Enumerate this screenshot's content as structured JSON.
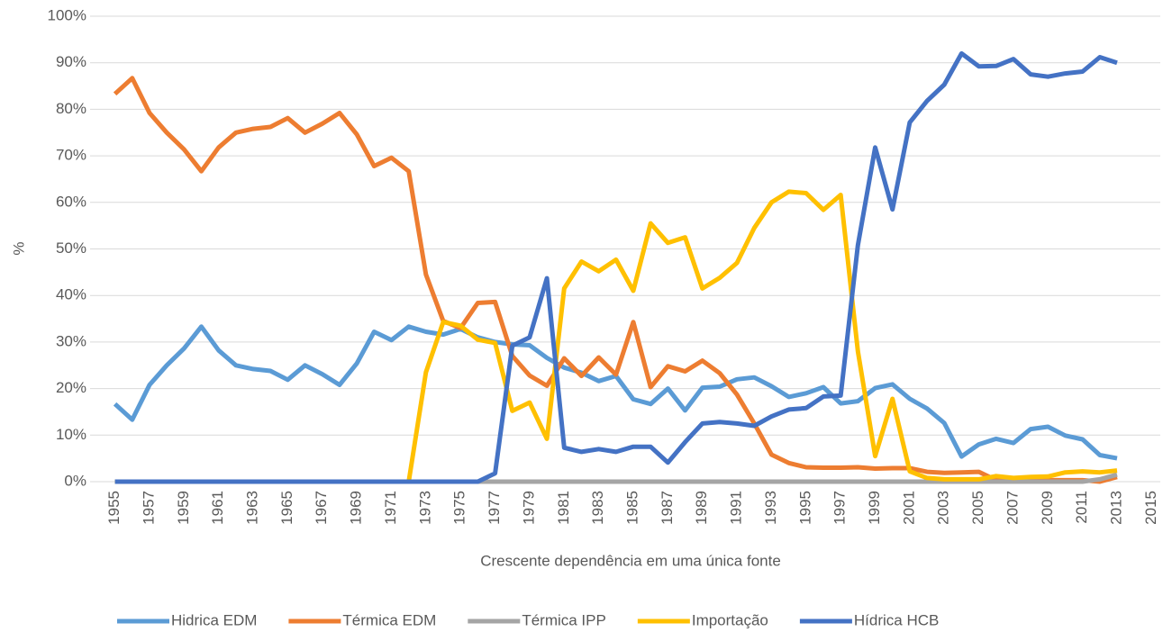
{
  "chart_data": {
    "type": "line",
    "y_label": "%",
    "x_label": "Crescente dependência em uma única fonte",
    "x": [
      1955,
      1956,
      1957,
      1958,
      1959,
      1960,
      1961,
      1962,
      1963,
      1964,
      1965,
      1966,
      1967,
      1968,
      1969,
      1970,
      1971,
      1972,
      1973,
      1974,
      1975,
      1976,
      1977,
      1978,
      1979,
      1980,
      1981,
      1982,
      1983,
      1984,
      1985,
      1986,
      1987,
      1988,
      1989,
      1990,
      1991,
      1992,
      1993,
      1994,
      1995,
      1996,
      1997,
      1998,
      1999,
      2000,
      2001,
      2002,
      2003,
      2004,
      2005,
      2006,
      2007,
      2008,
      2009,
      2010,
      2011,
      2012,
      2013
    ],
    "series": [
      {
        "name": "Hidrica EDM",
        "color": "#5b9bd5",
        "values": [
          16.7,
          13.3,
          20.8,
          25,
          28.6,
          33.3,
          28.2,
          25,
          24.2,
          23.8,
          21.9,
          25,
          23.1,
          20.8,
          25.4,
          32.2,
          30.4,
          33.3,
          32.2,
          31.6,
          32.8,
          31,
          30,
          29.5,
          29.3,
          26.6,
          24.5,
          23.4,
          21.6,
          22.7,
          17.7,
          16.7,
          20,
          15.3,
          20.2,
          20.4,
          22,
          22.4,
          20.5,
          18.2,
          19,
          20.3,
          16.8,
          17.3,
          20.1,
          20.9,
          17.8,
          15.7,
          12.6,
          5.4,
          8,
          9.2,
          8.3,
          11.3,
          11.8,
          9.9,
          9.1,
          5.7,
          5
        ]
      },
      {
        "name": "Térmica EDM",
        "color": "#ed7d31",
        "values": [
          83.3,
          86.7,
          79.2,
          75,
          71.4,
          66.7,
          71.8,
          75,
          75.8,
          76.2,
          78.1,
          75,
          76.9,
          79.2,
          74.6,
          67.8,
          69.6,
          66.7,
          44.5,
          34.5,
          33,
          38.4,
          38.6,
          27,
          22.8,
          20.6,
          26.5,
          22.7,
          26.7,
          23,
          34.3,
          20.3,
          24.8,
          23.7,
          26,
          23.3,
          18.7,
          12.5,
          5.8,
          4,
          3.1,
          3,
          3,
          3.1,
          2.8,
          2.9,
          2.9,
          2.1,
          1.9,
          2,
          2.1,
          0.3,
          0.3,
          0.3,
          0.3,
          0.3,
          0.3,
          0,
          1
        ]
      },
      {
        "name": "Térmica IPP",
        "color": "#a5a5a5",
        "values": [
          0,
          0,
          0,
          0,
          0,
          0,
          0,
          0,
          0,
          0,
          0,
          0,
          0,
          0,
          0,
          0,
          0,
          0,
          0,
          0,
          0,
          0,
          0,
          0,
          0,
          0,
          0,
          0,
          0,
          0,
          0,
          0,
          0,
          0,
          0,
          0,
          0,
          0,
          0,
          0,
          0,
          0,
          0,
          0,
          0,
          0,
          0,
          0,
          0,
          0,
          0,
          0,
          0,
          0,
          0,
          0,
          0,
          0.5,
          1.5
        ]
      },
      {
        "name": "Importação",
        "color": "#ffc000",
        "values": [
          0,
          0,
          0,
          0,
          0,
          0,
          0,
          0,
          0,
          0,
          0,
          0,
          0,
          0,
          0,
          0,
          0,
          0,
          23.5,
          34.3,
          33.5,
          30.5,
          29.8,
          15.2,
          17,
          9.2,
          41.5,
          47.3,
          45.2,
          47.7,
          41,
          55.5,
          51.3,
          52.5,
          41.5,
          43.8,
          47,
          54.5,
          60,
          62.3,
          62,
          58.4,
          61.6,
          28,
          5.5,
          17.8,
          2.2,
          0.8,
          0.5,
          0.5,
          0.5,
          1.2,
          0.8,
          1,
          1.1,
          2,
          2.2,
          2,
          2.4
        ]
      },
      {
        "name": "Hídrica HCB",
        "color": "#4472c4",
        "values": [
          0,
          0,
          0,
          0,
          0,
          0,
          0,
          0,
          0,
          0,
          0,
          0,
          0,
          0,
          0,
          0,
          0,
          0,
          0,
          0,
          0,
          0,
          1.8,
          29.2,
          31,
          43.7,
          7.3,
          6.4,
          7,
          6.4,
          7.5,
          7.5,
          4.1,
          8.5,
          12.5,
          12.8,
          12.5,
          12,
          14,
          15.5,
          15.8,
          18.3,
          18.5,
          50.8,
          71.8,
          58.5,
          77.2,
          81.8,
          85.3,
          92,
          89.2,
          89.3,
          90.8,
          87.5,
          87,
          87.7,
          88.1,
          91.2,
          90
        ]
      }
    ],
    "xlim": [
      1954.5,
      2015.5
    ],
    "xticks": [
      1955,
      1957,
      1959,
      1961,
      1963,
      1965,
      1967,
      1969,
      1971,
      1973,
      1975,
      1977,
      1979,
      1981,
      1983,
      1985,
      1987,
      1989,
      1991,
      1993,
      1995,
      1997,
      1999,
      2001,
      2003,
      2005,
      2007,
      2009,
      2011,
      2013,
      2015
    ],
    "ylim": [
      0,
      100
    ],
    "yticks": [
      {
        "value": 0,
        "label": "0%"
      },
      {
        "value": 10,
        "label": "10%"
      },
      {
        "value": 20,
        "label": "20%"
      },
      {
        "value": 30,
        "label": "30%"
      },
      {
        "value": 40,
        "label": "40%"
      },
      {
        "value": 50,
        "label": "50%"
      },
      {
        "value": 60,
        "label": "60%"
      },
      {
        "value": 70,
        "label": "70%"
      },
      {
        "value": 80,
        "label": "80%"
      },
      {
        "value": 90,
        "label": "90%"
      },
      {
        "value": 100,
        "label": "100%"
      }
    ],
    "grid": true,
    "legend": "bottom"
  }
}
